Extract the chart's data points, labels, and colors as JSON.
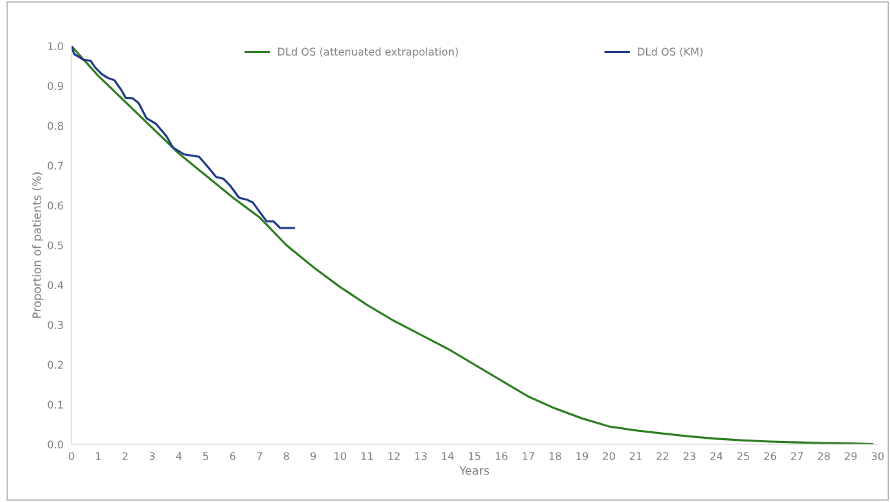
{
  "chart_data": {
    "type": "line",
    "xlabel": "Years",
    "ylabel": "Proportion of patients (%)",
    "xlim": [
      0,
      30
    ],
    "xticks": [
      0,
      1,
      2,
      3,
      4,
      5,
      6,
      7,
      8,
      9,
      10,
      11,
      12,
      13,
      14,
      15,
      16,
      17,
      18,
      19,
      20,
      21,
      22,
      23,
      24,
      25,
      26,
      27,
      28,
      29,
      30
    ],
    "ylim": [
      0,
      1.0
    ],
    "yticks": [
      {
        "value": 0,
        "label": "0.0"
      },
      {
        "value": 0.1,
        "label": "0.1"
      },
      {
        "value": 0.2,
        "label": "0.2"
      },
      {
        "value": 0.3,
        "label": "0.3"
      },
      {
        "value": 0.4,
        "label": "0.4"
      },
      {
        "value": 0.5,
        "label": "0.5"
      },
      {
        "value": 0.6,
        "label": "0.6"
      },
      {
        "value": 0.7,
        "label": "0.7"
      },
      {
        "value": 0.8,
        "label": "0.8"
      },
      {
        "value": 0.9,
        "label": "0.9"
      },
      {
        "value": 1.0,
        "label": "1.0"
      }
    ],
    "grid": false,
    "legend": "top",
    "marker": "none",
    "line_style": "solid",
    "series": [
      {
        "name": "DLd OS (attenuated extrapolation)",
        "color": "#2e7d22",
        "x": [
          0,
          1,
          2,
          3,
          4,
          5,
          6,
          7,
          8,
          9,
          10,
          11,
          12,
          13,
          14,
          15,
          16,
          17,
          18,
          19,
          20,
          21,
          22,
          23,
          24,
          25,
          26,
          27,
          28,
          29,
          29.8
        ],
        "values": [
          1.0,
          0.925,
          0.86,
          0.795,
          0.73,
          0.675,
          0.62,
          0.57,
          0.5,
          0.445,
          0.395,
          0.35,
          0.31,
          0.275,
          0.24,
          0.2,
          0.16,
          0.12,
          0.09,
          0.065,
          0.045,
          0.035,
          0.027,
          0.02,
          0.014,
          0.01,
          0.007,
          0.005,
          0.003,
          0.002,
          0.001
        ]
      },
      {
        "name": "DLd OS (KM)",
        "color": "#1f3a8a",
        "x": [
          0,
          0.1,
          0.46,
          0.72,
          0.87,
          1.12,
          1.35,
          1.6,
          1.87,
          2.02,
          2.27,
          2.5,
          2.79,
          3.14,
          3.53,
          3.78,
          4.19,
          4.75,
          5.06,
          5.39,
          5.65,
          5.9,
          6.24,
          6.54,
          6.75,
          7.0,
          7.26,
          7.51,
          7.77,
          8.28
        ],
        "values": [
          1.0,
          0.98,
          0.965,
          0.963,
          0.947,
          0.93,
          0.92,
          0.914,
          0.888,
          0.87,
          0.869,
          0.857,
          0.819,
          0.805,
          0.774,
          0.745,
          0.728,
          0.722,
          0.698,
          0.671,
          0.667,
          0.65,
          0.619,
          0.614,
          0.607,
          0.584,
          0.56,
          0.56,
          0.543,
          0.543
        ]
      }
    ]
  }
}
